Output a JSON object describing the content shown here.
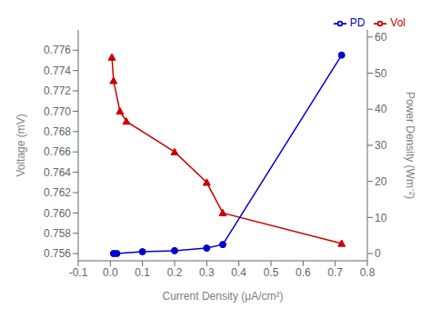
{
  "chart_data": {
    "type": "line",
    "xlabel": "Current Density (μA/cm²)",
    "ylabel": "Voltage (mV)",
    "y2label": "Power Density (Wm⁻²)",
    "xlim": [
      -0.1,
      0.8
    ],
    "xticks": [
      -0.1,
      {
        "value": 0.0,
        "label": "0.0"
      },
      0.1,
      0.2,
      0.3,
      0.4,
      0.5,
      0.6,
      0.7,
      0.8
    ],
    "ylim": [
      0.7553,
      0.778
    ],
    "yticks": [
      0.756,
      0.758,
      {
        "value": 0.76,
        "label": "0.760"
      },
      0.762,
      0.764,
      0.766,
      0.768,
      {
        "value": 0.77,
        "label": "0.770"
      },
      0.772,
      0.774,
      0.776
    ],
    "y2lim": [
      -2,
      62
    ],
    "y2ticks": [
      0,
      10,
      20,
      30,
      40,
      50,
      60
    ],
    "grid": false,
    "legend": "upper right",
    "series": [
      {
        "name": "Vol",
        "color": "#cc0000",
        "marker": "triangle",
        "x": [
          0.005,
          0.01,
          0.03,
          0.05,
          0.2,
          0.3,
          0.35,
          0.72
        ],
        "values": [
          0.7753,
          0.773,
          0.77,
          0.769,
          0.766,
          0.763,
          0.76,
          0.757
        ]
      },
      {
        "name": "PD",
        "color": "#0000cc",
        "marker": "circle",
        "axis": "y2",
        "x": [
          0.01,
          0.02,
          0.1,
          0.2,
          0.3,
          0.35,
          0.72
        ],
        "values": [
          0.0,
          0.0,
          0.5,
          0.8,
          1.5,
          2.5,
          55.0
        ]
      }
    ]
  }
}
